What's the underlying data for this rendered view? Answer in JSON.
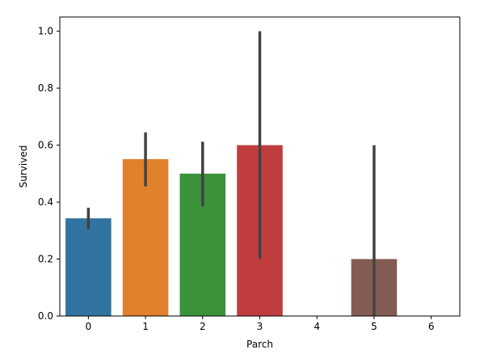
{
  "chart_data": {
    "type": "bar",
    "title": "",
    "xlabel": "Parch",
    "ylabel": "Survived",
    "categories": [
      "0",
      "1",
      "2",
      "3",
      "4",
      "5",
      "6"
    ],
    "values": [
      0.343,
      0.551,
      0.5,
      0.6,
      0.0,
      0.2,
      0.0
    ],
    "error_bars": [
      {
        "low": 0.305,
        "high": 0.38
      },
      {
        "low": 0.455,
        "high": 0.645
      },
      {
        "low": 0.385,
        "high": 0.612
      },
      {
        "low": 0.2,
        "high": 1.0
      },
      null,
      {
        "low": 0.0,
        "high": 0.6
      },
      null
    ],
    "colors": [
      "#3274a1",
      "#e1812c",
      "#3a923a",
      "#c03d3e",
      "#9372b2",
      "#845b53",
      "#d684bd"
    ],
    "errorbar_color": "#424242",
    "ylim": [
      0,
      1.05
    ],
    "yticks": [
      "0.0",
      "0.2",
      "0.4",
      "0.6",
      "0.8",
      "1.0"
    ],
    "ytick_values": [
      0.0,
      0.2,
      0.4,
      0.6,
      0.8,
      1.0
    ],
    "grid": false,
    "legend": "none"
  }
}
